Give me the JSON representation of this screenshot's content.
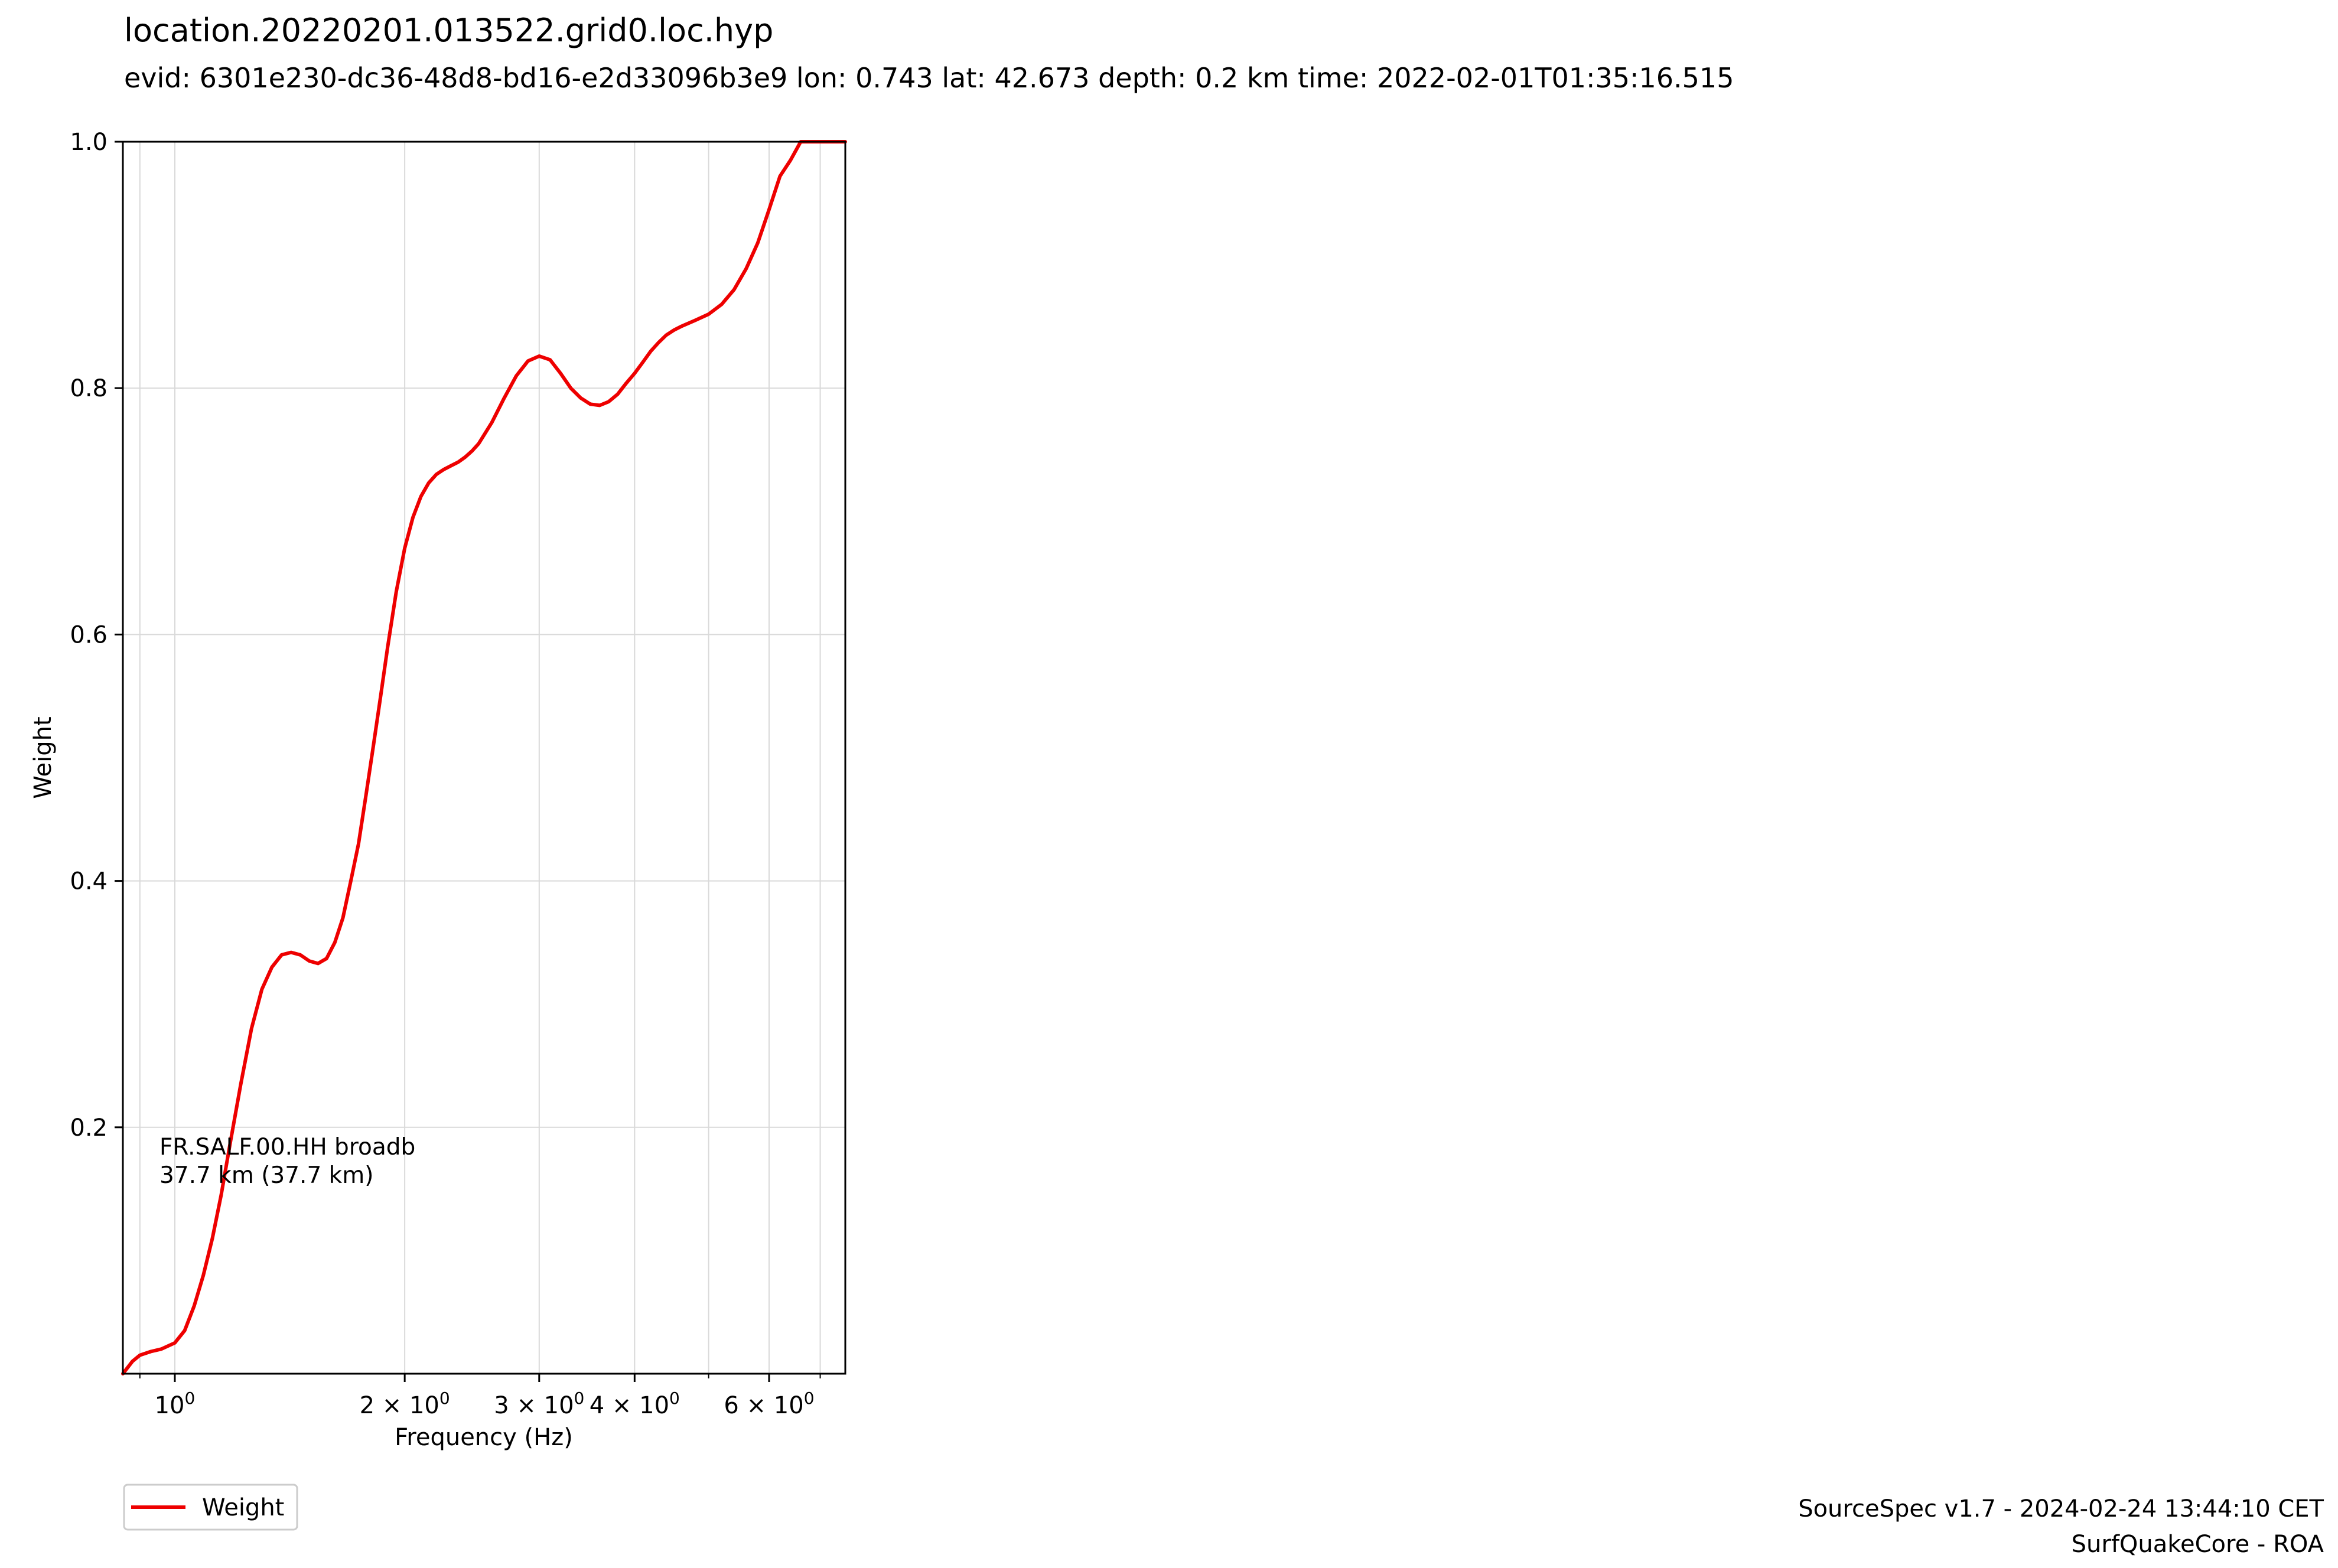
{
  "title": "location.20220201.013522.grid0.loc.hyp",
  "subtitle": "evid: 6301e230-dc36-48d8-bd16-e2d33096b3e9 lon: 0.743 lat: 42.673 depth: 0.2 km time: 2022-02-01T01:35:16.515",
  "footer": {
    "line1": "SourceSpec v1.7 - 2024-02-24 13:44:10 CET",
    "line2": "SurfQuakeCore - ROA"
  },
  "legend": {
    "label": "Weight"
  },
  "colors": {
    "series": "#ee0000",
    "grid": "#d9d9d9",
    "axes": "#000000"
  },
  "chart_data": {
    "type": "line",
    "xscale": "log",
    "xlabel": "Frequency (Hz)",
    "ylabel": "Weight",
    "xlim": [
      0.855,
      7.55
    ],
    "ylim": [
      0.0,
      1.0
    ],
    "grid": true,
    "legend_position": "below-left",
    "x_ticks": [
      {
        "value": 1,
        "label": "10",
        "exp": "0"
      },
      {
        "value": 2,
        "label": "2 × 10",
        "exp": "0"
      },
      {
        "value": 3,
        "label": "3 × 10",
        "exp": "0"
      },
      {
        "value": 4,
        "label": "4 × 10",
        "exp": "0"
      },
      {
        "value": 6,
        "label": "6 × 10",
        "exp": "0"
      }
    ],
    "x_minor_ticks": [
      0.9,
      5,
      7
    ],
    "y_ticks": [
      {
        "value": 0.2,
        "label": "0.2"
      },
      {
        "value": 0.4,
        "label": "0.4"
      },
      {
        "value": 0.6,
        "label": "0.6"
      },
      {
        "value": 0.8,
        "label": "0.8"
      },
      {
        "value": 1.0,
        "label": "1.0"
      }
    ],
    "annotation": {
      "line1": "FR.SALF.00.HH broadb",
      "line2": "37.7 km (37.7 km)"
    },
    "series": [
      {
        "name": "Weight",
        "color": "#ee0000",
        "x": [
          0.855,
          0.88,
          0.9,
          0.93,
          0.96,
          1.0,
          1.03,
          1.06,
          1.09,
          1.12,
          1.15,
          1.18,
          1.22,
          1.26,
          1.3,
          1.34,
          1.38,
          1.42,
          1.46,
          1.5,
          1.54,
          1.58,
          1.62,
          1.66,
          1.7,
          1.74,
          1.78,
          1.82,
          1.86,
          1.9,
          1.95,
          2.0,
          2.05,
          2.1,
          2.15,
          2.2,
          2.25,
          2.3,
          2.35,
          2.4,
          2.45,
          2.5,
          2.6,
          2.7,
          2.8,
          2.9,
          3.0,
          3.1,
          3.2,
          3.3,
          3.4,
          3.5,
          3.6,
          3.7,
          3.8,
          3.9,
          4.0,
          4.1,
          4.2,
          4.3,
          4.4,
          4.5,
          4.6,
          4.8,
          5.0,
          5.2,
          5.4,
          5.6,
          5.8,
          6.0,
          6.2,
          6.4,
          6.6,
          6.8,
          7.0,
          7.2,
          7.4,
          7.55
        ],
        "y": [
          0.0,
          0.01,
          0.015,
          0.018,
          0.02,
          0.025,
          0.035,
          0.055,
          0.08,
          0.11,
          0.145,
          0.185,
          0.235,
          0.28,
          0.312,
          0.33,
          0.34,
          0.342,
          0.34,
          0.335,
          0.333,
          0.337,
          0.35,
          0.37,
          0.4,
          0.43,
          0.47,
          0.51,
          0.55,
          0.59,
          0.635,
          0.67,
          0.695,
          0.712,
          0.723,
          0.73,
          0.734,
          0.737,
          0.74,
          0.744,
          0.749,
          0.755,
          0.772,
          0.792,
          0.81,
          0.822,
          0.826,
          0.823,
          0.812,
          0.8,
          0.792,
          0.787,
          0.786,
          0.789,
          0.795,
          0.804,
          0.812,
          0.821,
          0.83,
          0.837,
          0.843,
          0.847,
          0.85,
          0.855,
          0.86,
          0.868,
          0.88,
          0.897,
          0.918,
          0.945,
          0.972,
          0.985,
          1.0,
          1.0,
          1.0,
          1.0,
          1.0,
          1.0
        ]
      }
    ]
  }
}
